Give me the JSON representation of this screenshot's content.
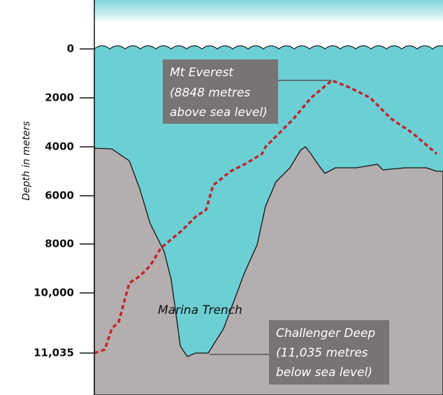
{
  "axis": {
    "label": "Depth in meters",
    "ticks": [
      "0",
      "2000",
      "4000",
      "6000",
      "8000",
      "10,000",
      "11,035"
    ]
  },
  "annotations": {
    "everest": [
      "Mt Everest",
      "(8848 metres",
      "above sea level)"
    ],
    "trench": "Marina Trench",
    "challenger": [
      "Challenger Deep",
      "(11,035  metres",
      "below sea level)"
    ]
  }
}
